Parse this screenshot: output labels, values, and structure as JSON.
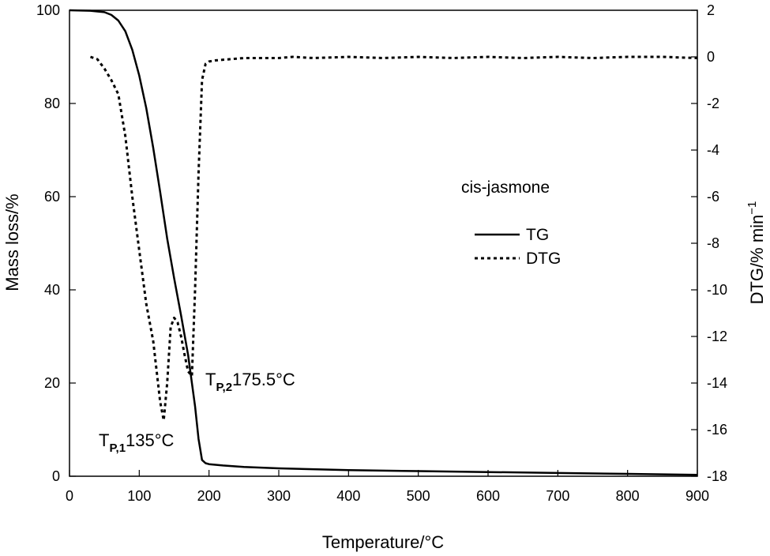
{
  "chart_data": {
    "type": "line",
    "title": "",
    "xlabel": "Temperature/°C",
    "ylabel_left": "Mass loss/%",
    "ylabel_right": "DTG/% min",
    "ylabel_right_superscript": "−1",
    "xlim": [
      0,
      900
    ],
    "ylim_left": [
      0,
      100
    ],
    "ylim_right": [
      -18,
      2
    ],
    "x_ticks": [
      "0",
      "100",
      "200",
      "300",
      "400",
      "500",
      "600",
      "700",
      "800",
      "900"
    ],
    "y_left_ticks": [
      "0",
      "20",
      "40",
      "60",
      "80",
      "100"
    ],
    "y_right_ticks": [
      "2",
      "0",
      "-2",
      "-4",
      "-6",
      "-8",
      "-10",
      "-12",
      "-14",
      "-16",
      "-18"
    ],
    "grid": false,
    "legend": {
      "title": "cis-jasmone",
      "placement": "right-center",
      "entries": [
        {
          "label": "TG",
          "style": "solid"
        },
        {
          "label": "DTG",
          "style": "dotted"
        }
      ]
    },
    "series": [
      {
        "name": "TG",
        "axis": "left",
        "style": "solid",
        "x": [
          0,
          30,
          50,
          60,
          70,
          80,
          90,
          100,
          110,
          120,
          130,
          140,
          150,
          160,
          170,
          180,
          185,
          190,
          195,
          200,
          220,
          250,
          300,
          400,
          500,
          600,
          700,
          800,
          900
        ],
        "y": [
          100,
          99.9,
          99.6,
          99.0,
          97.8,
          95.5,
          91.5,
          86.0,
          79.0,
          70.5,
          61.0,
          51.0,
          42.5,
          34.5,
          26.0,
          15.0,
          8.0,
          3.5,
          2.8,
          2.6,
          2.3,
          2.0,
          1.7,
          1.3,
          1.1,
          0.9,
          0.7,
          0.5,
          0.3
        ]
      },
      {
        "name": "DTG",
        "axis": "right",
        "style": "dotted",
        "x": [
          30,
          40,
          50,
          60,
          70,
          80,
          90,
          100,
          110,
          120,
          125,
          130,
          135,
          140,
          145,
          150,
          155,
          160,
          165,
          170,
          175.5,
          180,
          185,
          190,
          195,
          200,
          210,
          250,
          300,
          320,
          350,
          400,
          450,
          500,
          550,
          600,
          650,
          700,
          750,
          800,
          850,
          900
        ],
        "y": [
          0,
          -0.1,
          -0.5,
          -1.0,
          -1.6,
          -3.4,
          -6.0,
          -8.3,
          -10.6,
          -12.2,
          -13.5,
          -14.8,
          -15.6,
          -14.0,
          -11.6,
          -11.2,
          -11.4,
          -12.0,
          -12.8,
          -13.5,
          -13.7,
          -10.0,
          -5.0,
          -1.0,
          -0.3,
          -0.2,
          -0.15,
          -0.05,
          -0.05,
          0.0,
          -0.05,
          0.0,
          -0.05,
          0.0,
          -0.05,
          0.0,
          -0.05,
          0.0,
          -0.05,
          0.0,
          0.0,
          -0.05
        ]
      }
    ],
    "annotations": [
      {
        "main": "T",
        "sub": "P,1",
        "value": "135°C",
        "x": 135,
        "y_right": -16.2
      },
      {
        "main": "T",
        "sub": "P,2",
        "value": "175.5°C",
        "x": 195,
        "y_right": -14.0
      }
    ]
  }
}
